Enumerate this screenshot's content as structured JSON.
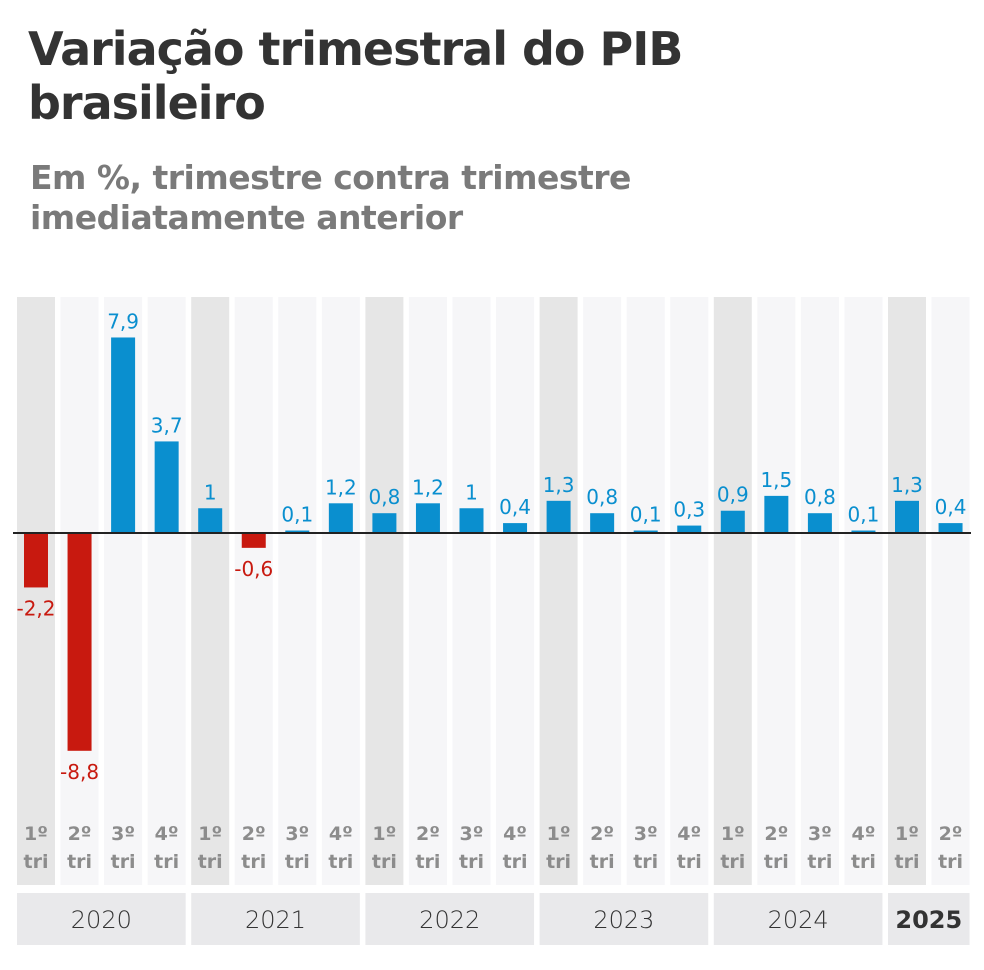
{
  "header": {
    "title": "Variação trimestral do PIB brasileiro",
    "subtitle": "Em %, trimestre contra trimestre imediatamente anterior"
  },
  "colors": {
    "positive": "#0a8fcf",
    "negative": "#c8190f",
    "first_quarter_band": "#e6e6e6",
    "other_quarter_band": "#f6f6f8",
    "year_band": "#e9e9eb",
    "zero_line": "#222222",
    "title": "#333333",
    "subtitle": "#7a7a7a",
    "quarter_label": "#8c8c8c"
  },
  "chart_data": {
    "type": "bar",
    "title": "Variação trimestral do PIB brasileiro",
    "subtitle": "Em %, trimestre contra trimestre imediatamente anterior",
    "xlabel": "",
    "ylabel": "",
    "grid": false,
    "legend": "none",
    "ylim": [
      -8.8,
      7.9
    ],
    "categories": [
      "1º tri 2020",
      "2º tri 2020",
      "3º tri 2020",
      "4º tri 2020",
      "1º tri 2021",
      "2º tri 2021",
      "3º tri 2021",
      "4º tri 2021",
      "1º tri 2022",
      "2º tri 2022",
      "3º tri 2022",
      "4º tri 2022",
      "1º tri 2023",
      "2º tri 2023",
      "3º tri 2023",
      "4º tri 2023",
      "1º tri 2024",
      "2º tri 2024",
      "3º tri 2024",
      "4º tri 2024",
      "1º tri 2025",
      "2º tri 2025"
    ],
    "quarters": [
      "1º",
      "2º",
      "3º",
      "4º",
      "1º",
      "2º",
      "3º",
      "4º",
      "1º",
      "2º",
      "3º",
      "4º",
      "1º",
      "2º",
      "3º",
      "4º",
      "1º",
      "2º",
      "3º",
      "4º",
      "1º",
      "2º"
    ],
    "quarter_suffix": "tri",
    "values": [
      -2.2,
      -8.8,
      7.9,
      3.7,
      1,
      -0.6,
      0.1,
      1.2,
      0.8,
      1.2,
      1,
      0.4,
      1.3,
      0.8,
      0.1,
      0.3,
      0.9,
      1.5,
      0.8,
      0.1,
      1.3,
      0.4
    ],
    "value_labels": [
      "-2,2",
      "-8,8",
      "7,9",
      "3,7",
      "1",
      "-0,6",
      "0,1",
      "1,2",
      "0,8",
      "1,2",
      "1",
      "0,4",
      "1,3",
      "0,8",
      "0,1",
      "0,3",
      "0,9",
      "1,5",
      "0,8",
      "0,1",
      "1,3",
      "0,4"
    ],
    "years": [
      {
        "label": "2020",
        "quarters": 4,
        "bold": false
      },
      {
        "label": "2021",
        "quarters": 4,
        "bold": false
      },
      {
        "label": "2022",
        "quarters": 4,
        "bold": false
      },
      {
        "label": "2023",
        "quarters": 4,
        "bold": false
      },
      {
        "label": "2024",
        "quarters": 4,
        "bold": false
      },
      {
        "label": "2025",
        "quarters": 2,
        "bold": true
      }
    ]
  }
}
